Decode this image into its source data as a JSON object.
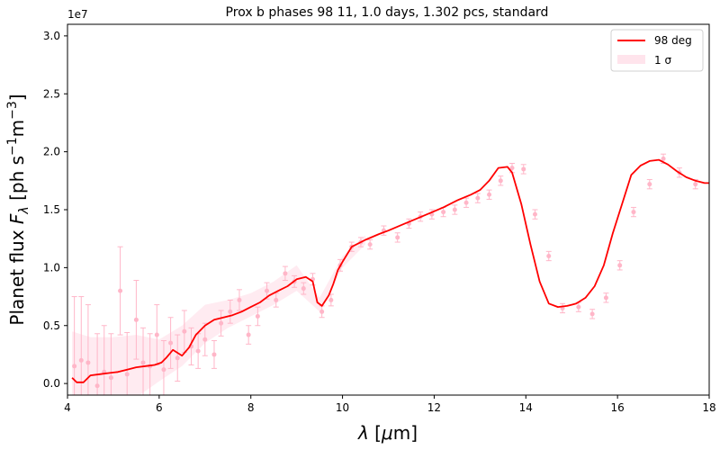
{
  "chart_data": {
    "type": "line",
    "title": "Prox b phases 98 11, 1.0 days, 1.302 pcs, standard",
    "xlabel": "λ [μm]",
    "ylabel": "Planet flux F_λ [ph s⁻¹m⁻³]",
    "y_offset_label": "1e7",
    "xlim": [
      4,
      18
    ],
    "ylim": [
      -0.1,
      3.1
    ],
    "x_ticks": [
      4,
      6,
      8,
      10,
      12,
      14,
      16,
      18
    ],
    "y_ticks": [
      0.0,
      0.5,
      1.0,
      1.5,
      2.0,
      2.5,
      3.0
    ],
    "x_tick_labels": [
      "4",
      "6",
      "8",
      "10",
      "12",
      "14",
      "16",
      "18"
    ],
    "y_tick_labels": [
      "0.0",
      "0.5",
      "1.0",
      "1.5",
      "2.0",
      "2.5",
      "3.0"
    ],
    "legend": {
      "position": "top-right",
      "entries": [
        "98 deg",
        "1 σ"
      ]
    },
    "colors": {
      "line": "#ff0000",
      "band": "#ffe4ec",
      "points": "#ffb6c8"
    },
    "series": [
      {
        "name": "98 deg",
        "x": [
          4.1,
          4.2,
          4.35,
          4.5,
          4.7,
          4.9,
          5.1,
          5.3,
          5.5,
          5.7,
          5.9,
          6.05,
          6.15,
          6.3,
          6.5,
          6.65,
          6.8,
          7.0,
          7.2,
          7.4,
          7.6,
          7.8,
          8.0,
          8.2,
          8.4,
          8.6,
          8.8,
          9.0,
          9.2,
          9.35,
          9.45,
          9.55,
          9.7,
          9.8,
          9.9,
          10.0,
          10.2,
          10.5,
          10.8,
          11.0,
          11.3,
          11.6,
          11.9,
          12.2,
          12.5,
          12.8,
          13.0,
          13.2,
          13.4,
          13.6,
          13.7,
          13.9,
          14.1,
          14.3,
          14.5,
          14.7,
          14.9,
          15.1,
          15.3,
          15.5,
          15.7,
          15.9,
          16.1,
          16.3,
          16.5,
          16.7,
          16.9,
          17.1,
          17.3,
          17.5,
          17.7,
          17.9,
          18.0
        ],
        "y": [
          0.05,
          0.01,
          0.01,
          0.07,
          0.08,
          0.09,
          0.1,
          0.12,
          0.14,
          0.15,
          0.16,
          0.18,
          0.22,
          0.29,
          0.24,
          0.31,
          0.42,
          0.5,
          0.55,
          0.57,
          0.59,
          0.62,
          0.66,
          0.7,
          0.76,
          0.8,
          0.84,
          0.9,
          0.92,
          0.88,
          0.7,
          0.67,
          0.76,
          0.86,
          0.98,
          1.05,
          1.18,
          1.24,
          1.29,
          1.32,
          1.37,
          1.42,
          1.47,
          1.52,
          1.58,
          1.63,
          1.67,
          1.75,
          1.86,
          1.87,
          1.82,
          1.55,
          1.2,
          0.88,
          0.69,
          0.66,
          0.67,
          0.69,
          0.74,
          0.84,
          1.02,
          1.3,
          1.55,
          1.8,
          1.88,
          1.92,
          1.93,
          1.89,
          1.83,
          1.78,
          1.75,
          1.73,
          1.73
        ]
      }
    ],
    "sigma_band": {
      "name": "1 σ",
      "x": [
        4.1,
        4.5,
        5.0,
        5.5,
        6.0,
        6.5,
        7.0,
        7.5,
        8.0,
        8.5,
        9.0,
        9.5,
        10.0,
        10.5
      ],
      "lower": [
        -0.35,
        -0.25,
        -0.2,
        -0.12,
        0.02,
        0.15,
        0.35,
        0.48,
        0.58,
        0.68,
        0.8,
        0.62,
        1.0,
        1.2
      ],
      "upper": [
        0.45,
        0.4,
        0.4,
        0.42,
        0.38,
        0.5,
        0.68,
        0.72,
        0.78,
        0.88,
        1.02,
        0.74,
        1.1,
        1.28
      ]
    },
    "data_points": {
      "x": [
        4.15,
        4.3,
        4.45,
        4.65,
        4.8,
        4.95,
        5.15,
        5.3,
        5.5,
        5.65,
        5.8,
        5.95,
        6.1,
        6.25,
        6.4,
        6.55,
        6.7,
        6.85,
        7.0,
        7.2,
        7.35,
        7.55,
        7.75,
        7.95,
        8.15,
        8.35,
        8.55,
        8.75,
        8.95,
        9.15,
        9.35,
        9.55,
        9.75,
        9.95,
        10.2,
        10.4,
        10.6,
        10.9,
        11.2,
        11.45,
        11.7,
        11.95,
        12.2,
        12.45,
        12.7,
        12.95,
        13.2,
        13.45,
        13.7,
        13.95,
        14.2,
        14.5,
        14.8,
        15.15,
        15.45,
        15.75,
        16.05,
        16.35,
        16.7,
        17.0,
        17.35,
        17.7
      ],
      "y": [
        0.15,
        0.2,
        0.18,
        -0.02,
        0.1,
        0.05,
        0.8,
        0.08,
        0.55,
        0.18,
        0.15,
        0.42,
        0.12,
        0.35,
        0.22,
        0.45,
        0.32,
        0.28,
        0.38,
        0.25,
        0.52,
        0.62,
        0.72,
        0.42,
        0.58,
        0.8,
        0.72,
        0.95,
        0.88,
        0.82,
        0.9,
        0.62,
        0.72,
        1.02,
        1.18,
        1.22,
        1.2,
        1.32,
        1.26,
        1.38,
        1.44,
        1.46,
        1.48,
        1.5,
        1.56,
        1.6,
        1.63,
        1.75,
        1.86,
        1.85,
        1.46,
        1.1,
        0.65,
        0.66,
        0.6,
        0.74,
        1.02,
        1.48,
        1.72,
        1.94,
        1.82,
        1.72
      ],
      "err": [
        0.6,
        0.55,
        0.5,
        0.45,
        0.4,
        0.38,
        0.38,
        0.36,
        0.34,
        0.3,
        0.28,
        0.26,
        0.25,
        0.22,
        0.2,
        0.18,
        0.16,
        0.15,
        0.14,
        0.12,
        0.11,
        0.1,
        0.09,
        0.08,
        0.08,
        0.07,
        0.06,
        0.06,
        0.05,
        0.05,
        0.05,
        0.05,
        0.05,
        0.05,
        0.04,
        0.04,
        0.04,
        0.04,
        0.04,
        0.04,
        0.04,
        0.04,
        0.04,
        0.04,
        0.04,
        0.04,
        0.04,
        0.04,
        0.04,
        0.04,
        0.04,
        0.04,
        0.04,
        0.04,
        0.04,
        0.04,
        0.04,
        0.04,
        0.04,
        0.04,
        0.04,
        0.04
      ]
    }
  }
}
